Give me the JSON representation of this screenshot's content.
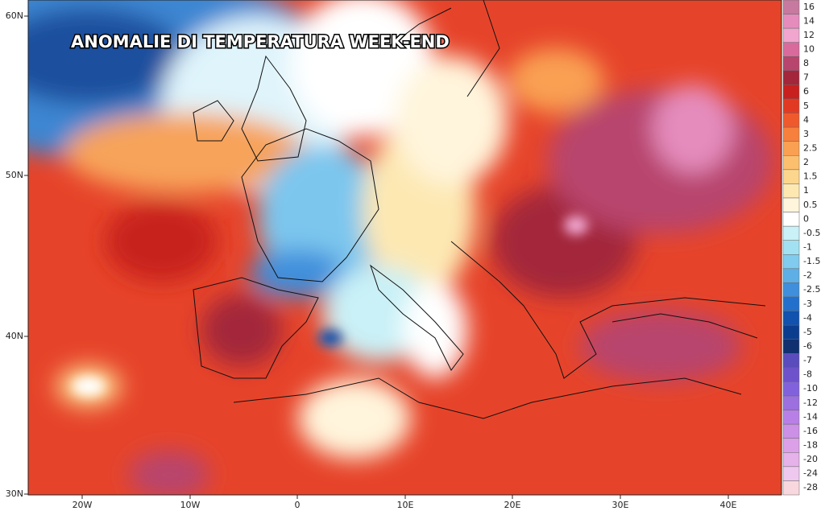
{
  "title": "ANOMALIE DI TEMPERATURA WEEK-END",
  "latitude_labels": [
    "60N",
    "50N",
    "40N",
    "30N"
  ],
  "longitude_labels": [
    "20W",
    "10W",
    "0",
    "10E",
    "20E",
    "30E",
    "40E"
  ],
  "colorbar": [
    {
      "label": "16",
      "color": "#c8799f"
    },
    {
      "label": "14",
      "color": "#e58cbd"
    },
    {
      "label": "12",
      "color": "#f0a6cf"
    },
    {
      "label": "10",
      "color": "#d86a9c"
    },
    {
      "label": "8",
      "color": "#b8456d"
    },
    {
      "label": "7",
      "color": "#a3263a"
    },
    {
      "label": "6",
      "color": "#c8201e"
    },
    {
      "label": "5",
      "color": "#e23a22"
    },
    {
      "label": "4",
      "color": "#ef5a2c"
    },
    {
      "label": "3",
      "color": "#f7803c"
    },
    {
      "label": "2.5",
      "color": "#f9a052"
    },
    {
      "label": "2",
      "color": "#fcbf6e"
    },
    {
      "label": "1.5",
      "color": "#fdd68e"
    },
    {
      "label": "1",
      "color": "#fee8b2"
    },
    {
      "label": "0.5",
      "color": "#fff5dc"
    },
    {
      "label": "0",
      "color": "#ffffff"
    },
    {
      "label": "-0.5",
      "color": "#c9f1f7"
    },
    {
      "label": "-1",
      "color": "#a2e1f1"
    },
    {
      "label": "-1.5",
      "color": "#80cbee"
    },
    {
      "label": "-2",
      "color": "#5eafe6"
    },
    {
      "label": "-2.5",
      "color": "#3f8fdc"
    },
    {
      "label": "-3",
      "color": "#2270cc"
    },
    {
      "label": "-4",
      "color": "#1052ad"
    },
    {
      "label": "-5",
      "color": "#0b3d8e"
    },
    {
      "label": "-6",
      "color": "#113070"
    },
    {
      "label": "-7",
      "color": "#5a4cbc"
    },
    {
      "label": "-8",
      "color": "#6e52cc"
    },
    {
      "label": "-10",
      "color": "#8262dc"
    },
    {
      "label": "-12",
      "color": "#9c70de"
    },
    {
      "label": "-14",
      "color": "#b880e6"
    },
    {
      "label": "-16",
      "color": "#cc90e6"
    },
    {
      "label": "-18",
      "color": "#dca0e8"
    },
    {
      "label": "-20",
      "color": "#e6b2ea"
    },
    {
      "label": "-24",
      "color": "#efc8f0"
    },
    {
      "label": "-28",
      "color": "#f8d8de"
    }
  ]
}
